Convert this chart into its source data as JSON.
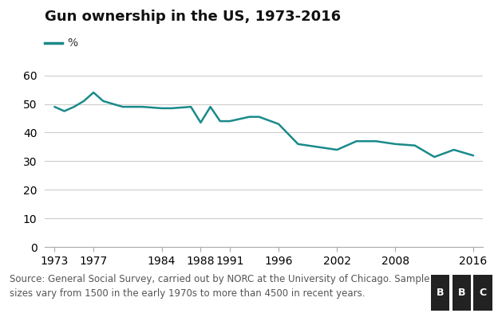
{
  "title": "Gun ownership in the US, 1973-2016",
  "line_color": "#1a8a8a",
  "legend_label": "%",
  "background_color": "#ffffff",
  "source_text": "Source: General Social Survey, carried out by NORC at the University of Chicago. Sample\nsizes vary from 1500 in the early 1970s to more than 4500 in recent years.",
  "years": [
    1973,
    1974,
    1975,
    1976,
    1977,
    1978,
    1980,
    1982,
    1984,
    1985,
    1987,
    1988,
    1989,
    1990,
    1991,
    1993,
    1994,
    1996,
    1998,
    2000,
    2002,
    2004,
    2006,
    2008,
    2010,
    2012,
    2014,
    2016
  ],
  "values": [
    49,
    47.5,
    49,
    51,
    54,
    51,
    49,
    49,
    48.5,
    48.5,
    49,
    43.5,
    49,
    44,
    44,
    45.5,
    45.5,
    43,
    36,
    35,
    34,
    37,
    37,
    36,
    35.5,
    31.5,
    34,
    32
  ],
  "xtick_labels": [
    "1973",
    "1977",
    "1984",
    "1988",
    "1991",
    "1996",
    "2002",
    "2008",
    "2016"
  ],
  "xtick_positions": [
    1973,
    1977,
    1984,
    1988,
    1991,
    1996,
    2002,
    2008,
    2016
  ],
  "ytick_labels": [
    "0",
    "10",
    "20",
    "30",
    "40",
    "50",
    "60"
  ],
  "ytick_positions": [
    0,
    10,
    20,
    30,
    40,
    50,
    60
  ],
  "ylim": [
    0,
    65
  ],
  "xlim": [
    1972,
    2017
  ],
  "grid_color": "#cccccc",
  "footer_bg_color": "#efefef",
  "footer_text_color": "#555555",
  "title_fontsize": 13,
  "axis_fontsize": 10,
  "source_fontsize": 8.5
}
